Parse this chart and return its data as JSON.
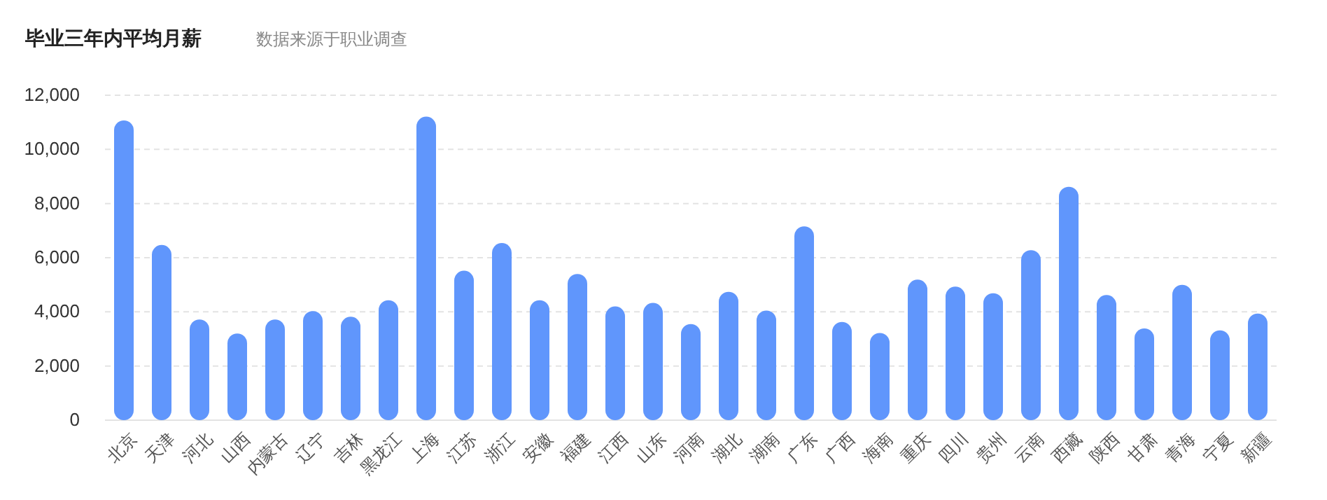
{
  "chart_data": {
    "type": "bar",
    "title": "毕业三年内平均月薪",
    "subtitle": "数据来源于职业调查",
    "categories": [
      "北京",
      "天津",
      "河北",
      "山西",
      "内蒙古",
      "辽宁",
      "吉林",
      "黑龙江",
      "上海",
      "江苏",
      "浙江",
      "安徽",
      "福建",
      "江西",
      "山东",
      "河南",
      "湖北",
      "湖南",
      "广东",
      "广西",
      "海南",
      "重庆",
      "四川",
      "贵州",
      "云南",
      "西藏",
      "陕西",
      "甘肃",
      "青海",
      "宁夏",
      "新疆"
    ],
    "values": [
      11070,
      6470,
      3720,
      3200,
      3720,
      4030,
      3820,
      4430,
      11210,
      5520,
      6540,
      4430,
      5400,
      4200,
      4330,
      3550,
      4740,
      4050,
      7160,
      3630,
      3220,
      5190,
      4930,
      4690,
      6280,
      8620,
      4620,
      3390,
      5000,
      3320,
      3940
    ],
    "color": "#6096fc",
    "ylim": [
      0,
      12000
    ],
    "yticks": [
      0,
      {
        "value": 2000,
        "label": "2,000"
      },
      {
        "value": 4000,
        "label": "4,000"
      },
      {
        "value": 6000,
        "label": "6,000"
      },
      {
        "value": 8000,
        "label": "8,000"
      },
      {
        "value": 10000,
        "label": "10,000"
      },
      {
        "value": 12000,
        "label": "12,000"
      }
    ],
    "grid": "y"
  }
}
